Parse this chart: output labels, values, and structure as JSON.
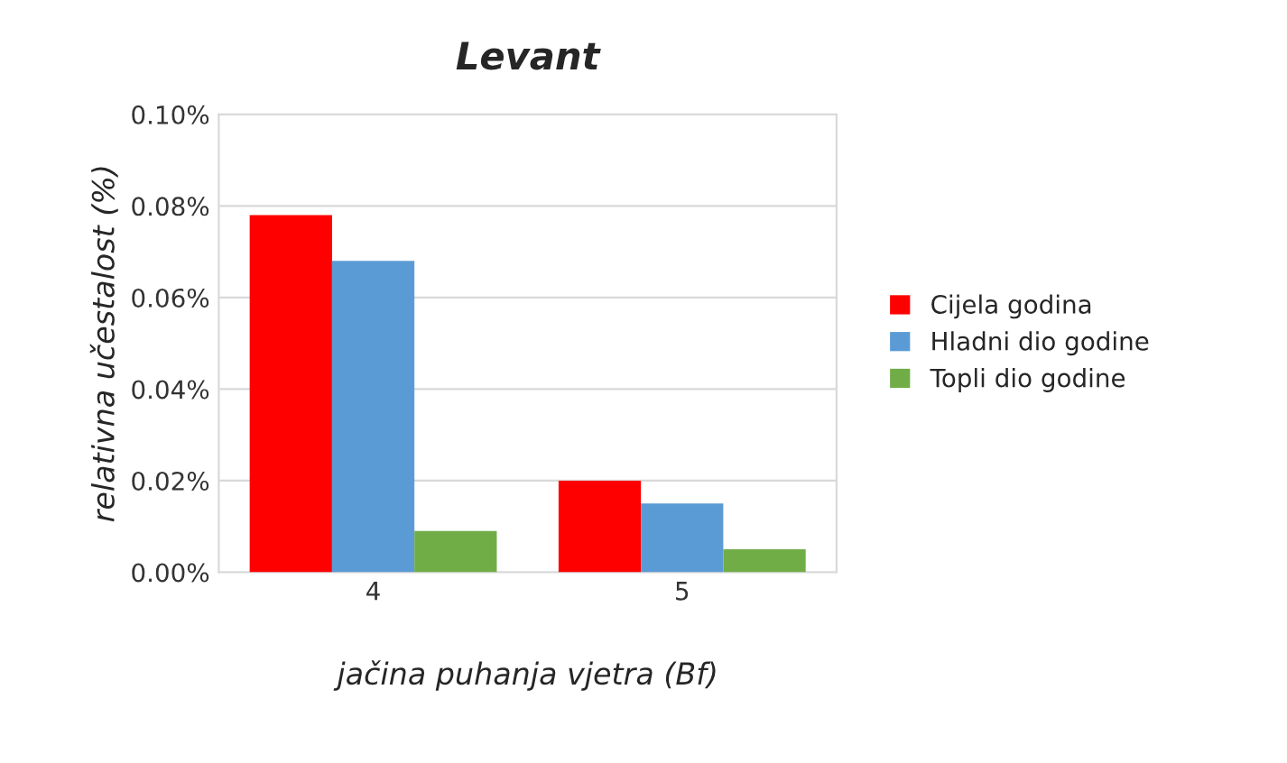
{
  "chart_data": {
    "type": "bar",
    "title": "Levant",
    "xlabel": "jačina puhanja vjetra (Bf)",
    "ylabel": "relativna učestalost (%)",
    "categories": [
      "4",
      "5"
    ],
    "series": [
      {
        "name": "Cijela godina",
        "color": "#ff0000",
        "values": [
          0.078,
          0.02
        ]
      },
      {
        "name": "Hladni dio godine",
        "color": "#5b9bd5",
        "values": [
          0.068,
          0.015
        ]
      },
      {
        "name": "Topli dio godine",
        "color": "#70ad47",
        "values": [
          0.009,
          0.005
        ]
      }
    ],
    "ylim": [
      0,
      0.1
    ],
    "yticks": [
      {
        "value": 0,
        "label": "0.00%"
      },
      {
        "value": 0.02,
        "label": "0.02%"
      },
      {
        "value": 0.04,
        "label": "0.04%"
      },
      {
        "value": 0.06,
        "label": "0.06%"
      },
      {
        "value": 0.08,
        "label": "0.08%"
      },
      {
        "value": 0.1,
        "label": "0.10%"
      }
    ],
    "grid": "y",
    "legend": "right"
  }
}
